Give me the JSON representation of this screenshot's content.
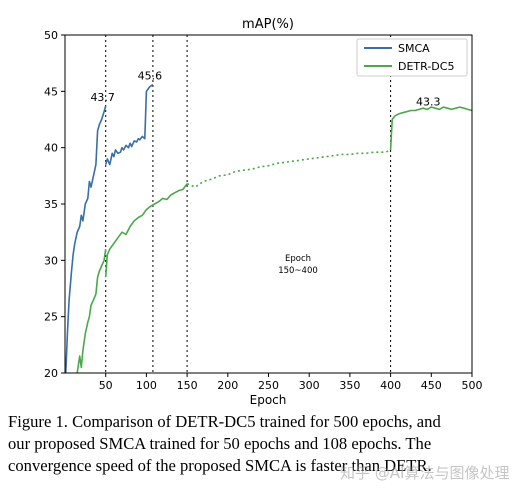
{
  "chart_data": {
    "type": "line",
    "title": "mAP(%)",
    "xlabel": "Epoch",
    "ylabel": "",
    "xlim": [
      0,
      500
    ],
    "ylim": [
      20,
      50
    ],
    "xticks": [
      50,
      100,
      150,
      200,
      250,
      300,
      350,
      400,
      450,
      500
    ],
    "yticks": [
      20,
      25,
      30,
      35,
      40,
      45,
      50
    ],
    "grid": false,
    "legend_position": "top-right",
    "vlines": [
      50,
      108,
      150,
      400
    ],
    "series": [
      {
        "name": "SMCA",
        "color": "#3a6ea5",
        "segments": [
          {
            "x": [
              1,
              3,
              5,
              8,
              10,
              12,
              15,
              18,
              20,
              22,
              25,
              28,
              30,
              32,
              35,
              38,
              40,
              42,
              45,
              48,
              50
            ],
            "y": [
              20.0,
              23.5,
              26.5,
              29.0,
              30.5,
              31.5,
              32.5,
              33.0,
              34.0,
              33.5,
              35.0,
              35.5,
              37.0,
              36.5,
              37.5,
              38.5,
              41.5,
              42.0,
              42.5,
              43.2,
              43.7
            ]
          },
          {
            "x": [
              50,
              52,
              55,
              58,
              60,
              62,
              65,
              68,
              70,
              72,
              75,
              78,
              80,
              82,
              85,
              88,
              90,
              92,
              95,
              98,
              100,
              102,
              104,
              106,
              108
            ],
            "y": [
              38.5,
              39.0,
              38.5,
              39.5,
              39.2,
              39.8,
              39.5,
              39.6,
              40.0,
              39.8,
              40.2,
              40.0,
              40.4,
              40.1,
              40.6,
              40.5,
              40.8,
              40.7,
              41.0,
              40.8,
              45.0,
              45.2,
              45.4,
              45.5,
              45.6
            ]
          }
        ],
        "annotations": [
          {
            "x": 50,
            "y": 43.7,
            "text": "43.7"
          },
          {
            "x": 108,
            "y": 45.6,
            "text": "45.6"
          }
        ]
      },
      {
        "name": "DETR-DC5",
        "color": "#4aa84a",
        "segments": [
          {
            "x": [
              15,
              18,
              20,
              22,
              25,
              28,
              30,
              32,
              35,
              38,
              40,
              42,
              45,
              48,
              50
            ],
            "y": [
              20.0,
              21.5,
              20.5,
              22.0,
              23.5,
              24.5,
              25.0,
              26.0,
              26.5,
              27.0,
              28.5,
              29.0,
              29.5,
              30.0,
              31.0
            ]
          },
          {
            "x": [
              50,
              52,
              55,
              60,
              65,
              70,
              75,
              80,
              85,
              90,
              95,
              100,
              105,
              110,
              115,
              120,
              125,
              130,
              135,
              140,
              145,
              150
            ],
            "y": [
              28.5,
              30.5,
              31.0,
              31.5,
              32.0,
              32.5,
              32.3,
              33.0,
              33.5,
              33.8,
              34.0,
              34.5,
              34.8,
              35.0,
              35.2,
              35.5,
              35.4,
              35.8,
              36.0,
              36.2,
              36.3,
              36.8
            ]
          },
          {
            "x": [
              150,
              160,
              170,
              180,
              190,
              200,
              210,
              220,
              230,
              240,
              250,
              260,
              270,
              280,
              290,
              300,
              310,
              320,
              330,
              340,
              350,
              360,
              370,
              380,
              390,
              400
            ],
            "y": [
              36.8,
              36.5,
              37.0,
              37.2,
              37.5,
              37.6,
              37.9,
              38.0,
              38.1,
              38.3,
              38.4,
              38.6,
              38.7,
              38.8,
              38.9,
              39.0,
              39.1,
              39.2,
              39.3,
              39.4,
              39.4,
              39.5,
              39.5,
              39.6,
              39.6,
              39.7
            ],
            "dotted": true
          },
          {
            "x": [
              400,
              402,
              405,
              410,
              415,
              420,
              425,
              430,
              435,
              440,
              445,
              450,
              455,
              460,
              465,
              470,
              475,
              480,
              485,
              490,
              495,
              500
            ],
            "y": [
              39.8,
              42.5,
              42.8,
              43.0,
              43.1,
              43.2,
              43.3,
              43.3,
              43.4,
              43.5,
              43.4,
              43.6,
              43.5,
              43.4,
              43.6,
              43.5,
              43.4,
              43.5,
              43.6,
              43.5,
              43.4,
              43.3
            ]
          }
        ],
        "annotations": [
          {
            "x": 450,
            "y": 43.3,
            "text": "43.3"
          }
        ]
      }
    ],
    "annotation_text": [
      "Epoch",
      "150~400"
    ]
  },
  "caption": {
    "line1": "Figure 1. Comparison of DETR-DC5 trained for 500 epochs, and",
    "line2": "our proposed SMCA trained for 50 epochs and 108 epochs.  The",
    "line3": "convergence speed of the proposed SMCA is faster than DETR."
  },
  "watermark": "知乎 @AI算法与图像处理"
}
